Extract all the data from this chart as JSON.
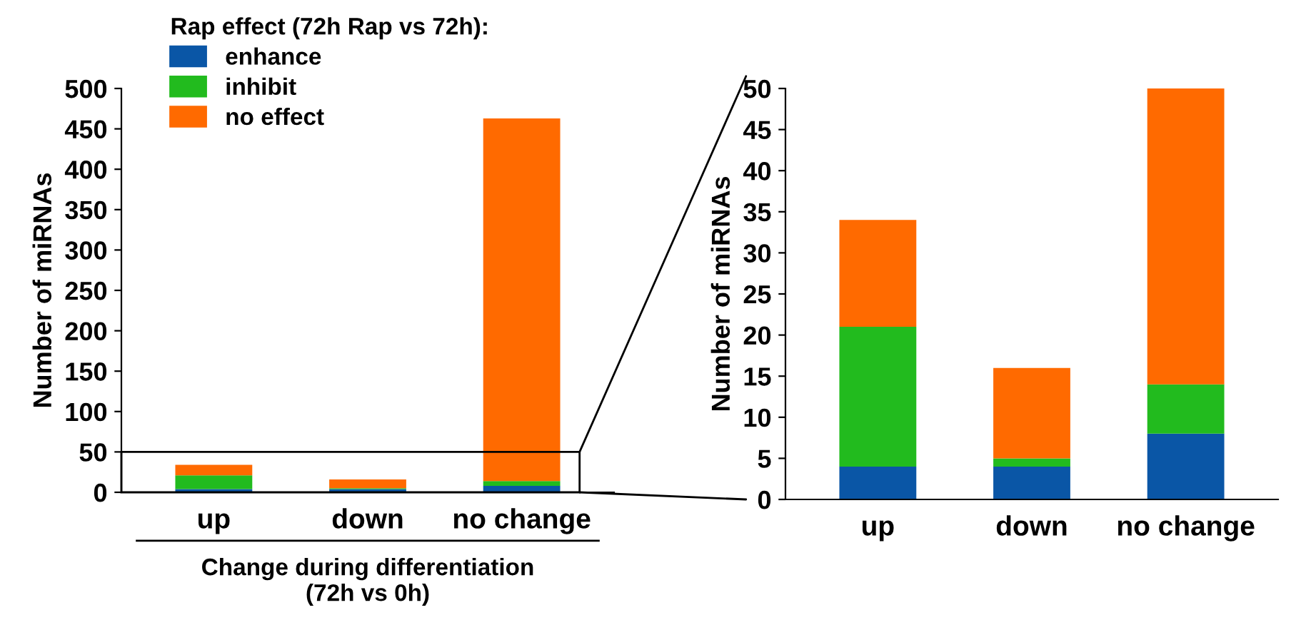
{
  "chart_data": [
    {
      "type": "bar",
      "stacked": true,
      "categories": [
        "up",
        "down",
        "no change"
      ],
      "ylabel": "Number of miRNAs",
      "xlabel": "Change during differentiation\n(72h vs 0h)",
      "legend_title": "Rap effect (72h Rap vs 72h):",
      "legend": "top left",
      "ylim": [
        0,
        500
      ],
      "yticks": [
        0,
        50,
        100,
        150,
        200,
        250,
        300,
        350,
        400,
        450,
        500
      ],
      "grid": false,
      "series": [
        {
          "name": "enhance",
          "color": "#0a56a6",
          "values": [
            4,
            4,
            8
          ]
        },
        {
          "name": "inhibit",
          "color": "#22bb1e",
          "values": [
            17,
            1,
            6
          ]
        },
        {
          "name": "no effect",
          "color": "#ff6a00",
          "values": [
            13,
            11,
            449
          ]
        }
      ]
    },
    {
      "type": "bar",
      "stacked": true,
      "categories": [
        "up",
        "down",
        "no change"
      ],
      "ylabel": "Number of miRNAs",
      "legend": false,
      "ylim": [
        0,
        50
      ],
      "yticks": [
        0,
        5,
        10,
        15,
        20,
        25,
        30,
        35,
        40,
        45,
        50
      ],
      "grid": false,
      "series": [
        {
          "color": "#0a56a6",
          "values": [
            4,
            4,
            8
          ]
        },
        {
          "color": "#22bb1e",
          "values": [
            17,
            1,
            6
          ]
        },
        {
          "color": "#ff6a00",
          "values": [
            13,
            11,
            36
          ]
        }
      ]
    }
  ]
}
